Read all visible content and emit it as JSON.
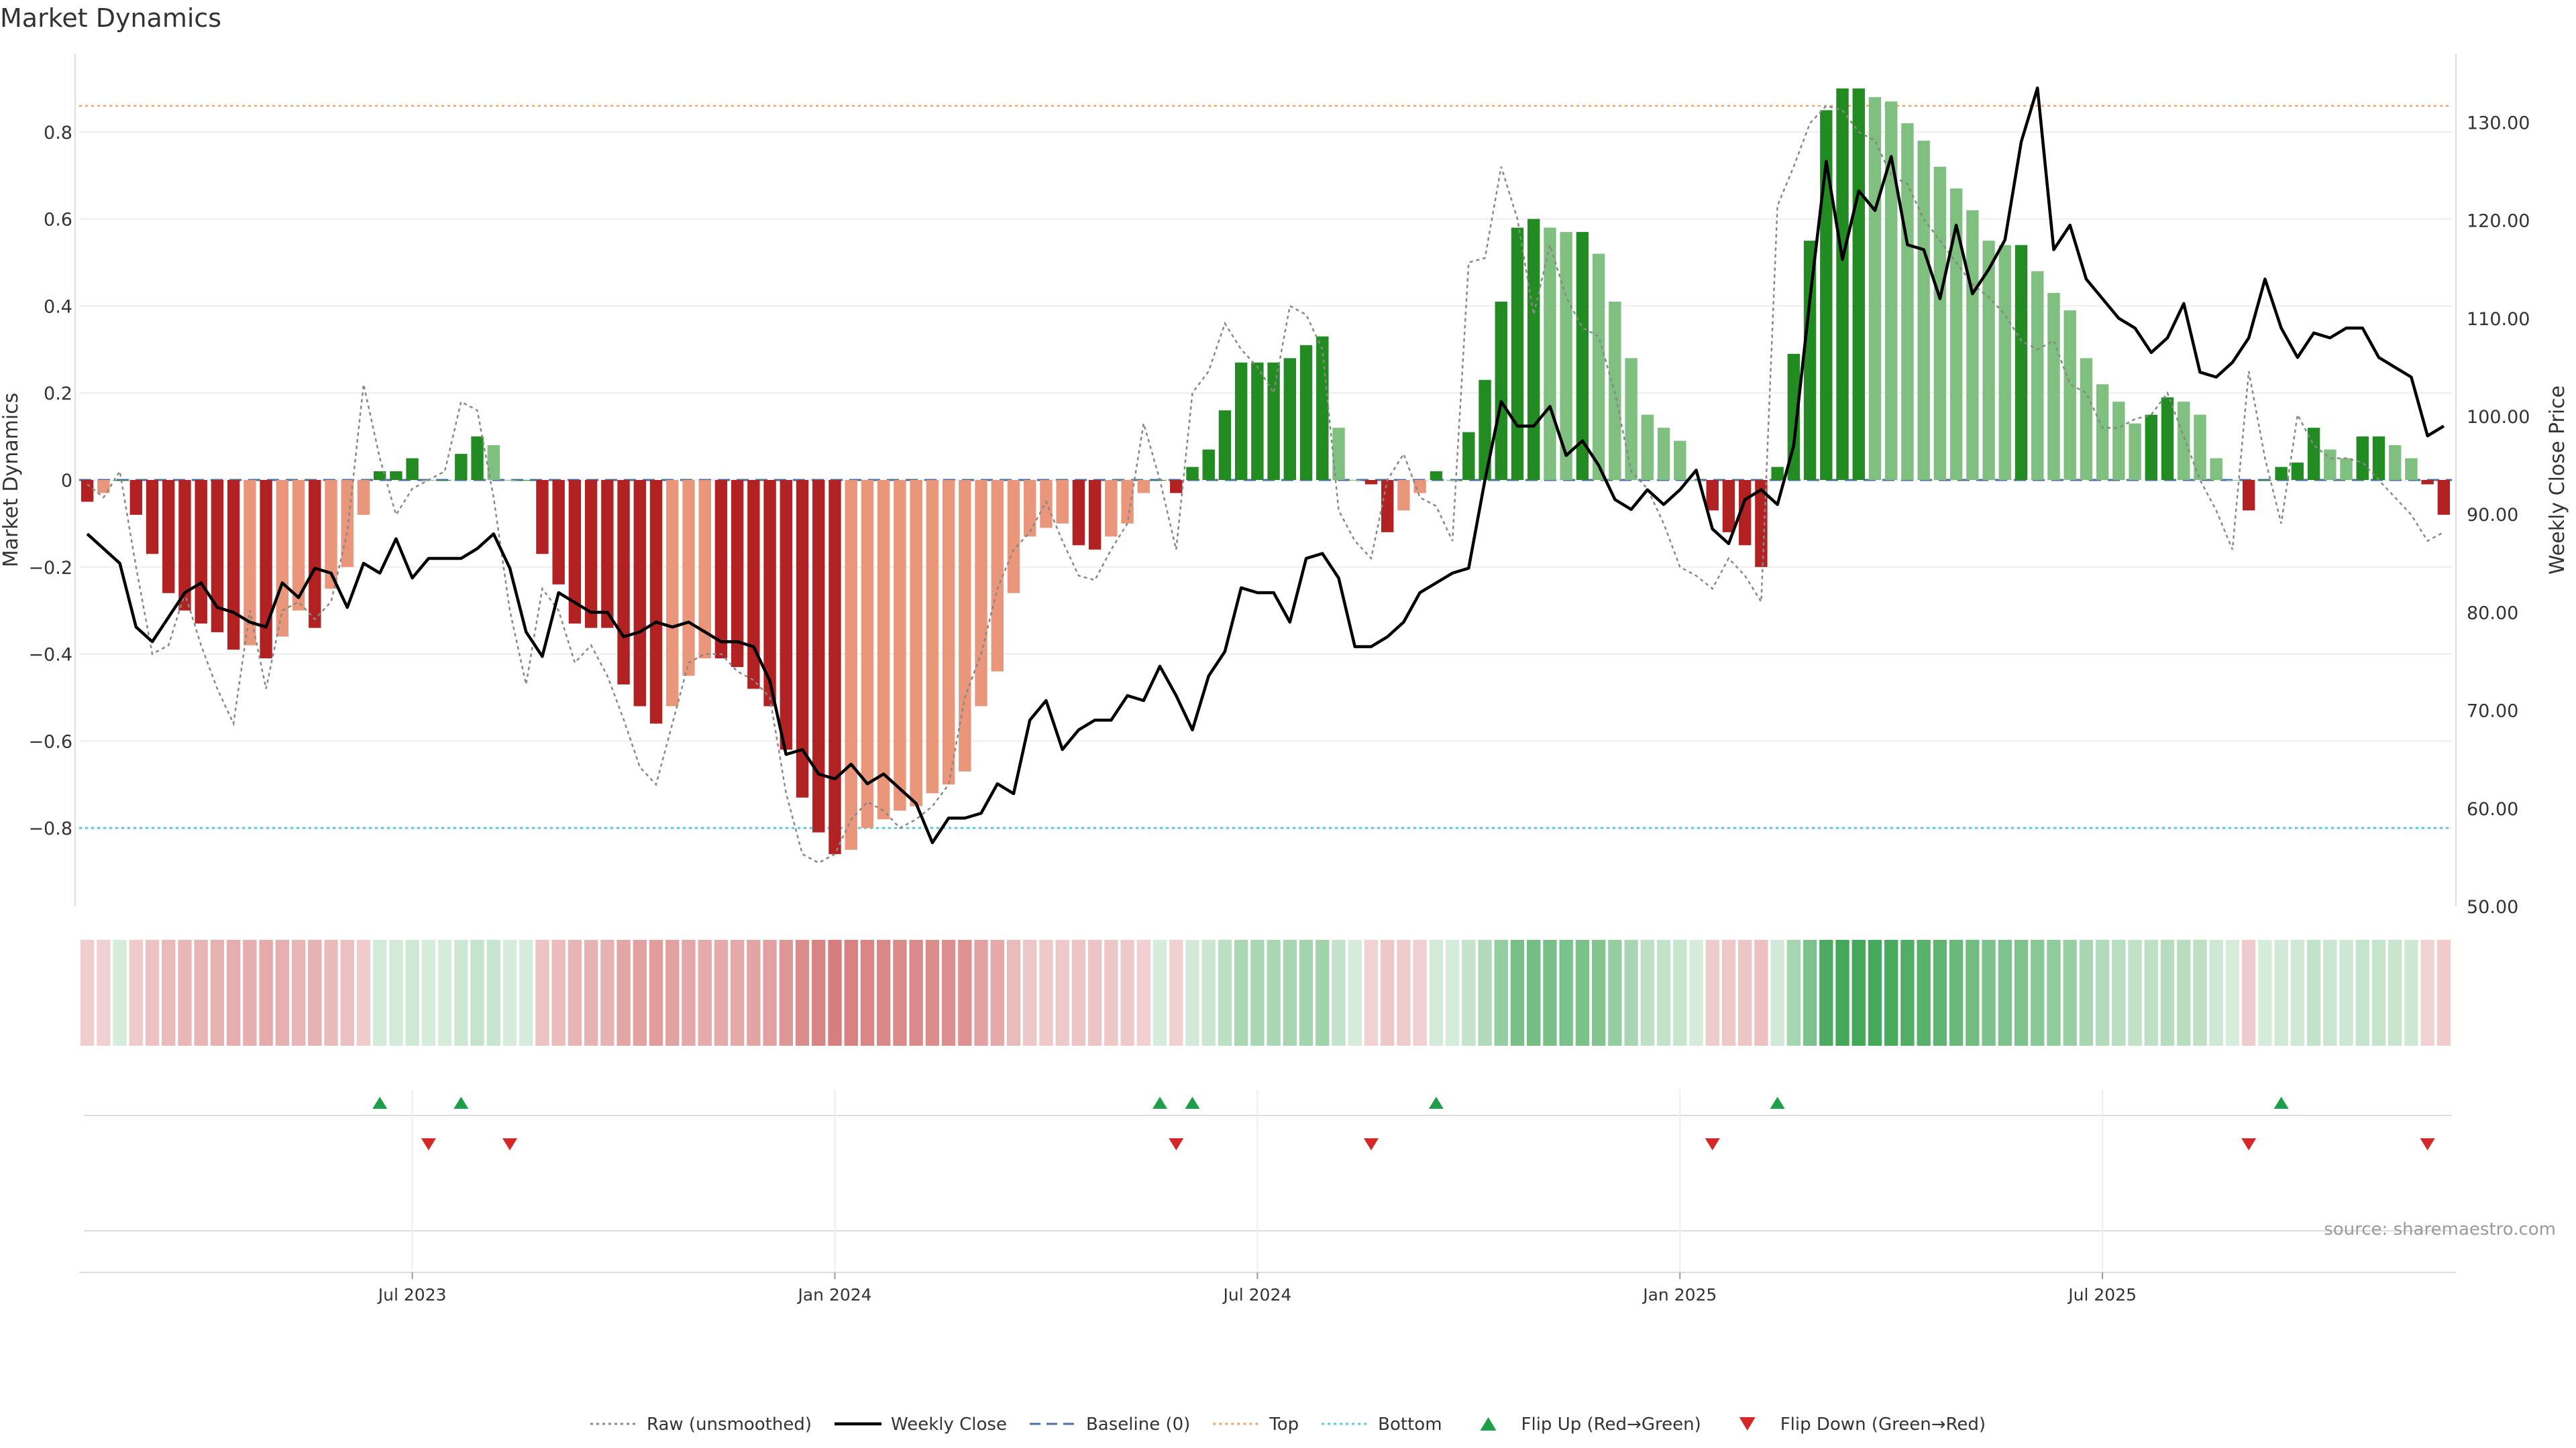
{
  "chart_data": {
    "type": "bar",
    "title": "Market Dynamics",
    "ylabel_left": "Market Dynamics",
    "ylabel_right": "Weekly Close Price",
    "left_axis": {
      "ticks": [
        "-0.8",
        "-0.6",
        "-0.4",
        "-0.2",
        "0",
        "0.2",
        "0.4",
        "0.6",
        "0.8"
      ],
      "range": [
        -0.98,
        0.98
      ]
    },
    "right_axis": {
      "ticks": [
        "50.00",
        "60.00",
        "70.00",
        "80.00",
        "90.00",
        "100.00",
        "110.00",
        "120.00",
        "130.00"
      ],
      "range": [
        50,
        137
      ]
    },
    "x_ticks": [
      {
        "label": "Jul 2023",
        "index": 20
      },
      {
        "label": "Jan 2024",
        "index": 46
      },
      {
        "label": "Jul 2024",
        "index": 72
      },
      {
        "label": "Jan 2025",
        "index": 98
      },
      {
        "label": "Jul 2025",
        "index": 124
      }
    ],
    "reference_lines": {
      "top": 0.86,
      "bottom": -0.8,
      "baseline": 0
    },
    "colors": {
      "red_strong": "#b22222",
      "red_light": "#e9967a",
      "green_strong": "#228b22",
      "green_light": "#7fbf7f",
      "top_line": "#f4a261",
      "bottom_line": "#56c8e0",
      "baseline": "#4a6fa5",
      "raw_line": "#888888",
      "close_line": "#000000",
      "flip_up": "#1e9e4a",
      "flip_down": "#d62728"
    },
    "bars": [
      -0.05,
      -0.03,
      0,
      -0.08,
      -0.17,
      -0.26,
      -0.3,
      -0.33,
      -0.35,
      -0.39,
      -0.38,
      -0.41,
      -0.36,
      -0.3,
      -0.34,
      -0.25,
      -0.2,
      -0.08,
      0.02,
      0.02,
      0.05,
      0,
      0,
      0.06,
      0.1,
      0.08,
      0,
      0,
      -0.17,
      -0.24,
      -0.33,
      -0.34,
      -0.34,
      -0.47,
      -0.52,
      -0.56,
      -0.52,
      -0.45,
      -0.41,
      -0.41,
      -0.43,
      -0.48,
      -0.52,
      -0.62,
      -0.73,
      -0.81,
      -0.86,
      -0.85,
      -0.8,
      -0.78,
      -0.76,
      -0.75,
      -0.72,
      -0.7,
      -0.67,
      -0.52,
      -0.44,
      -0.26,
      -0.13,
      -0.11,
      -0.1,
      -0.15,
      -0.16,
      -0.13,
      -0.1,
      -0.03,
      0,
      -0.03,
      0.03,
      0.07,
      0.16,
      0.27,
      0.27,
      0.27,
      0.28,
      0.31,
      0.33,
      0.12,
      0,
      -0.01,
      -0.12,
      -0.07,
      -0.03,
      0.02,
      0,
      0.11,
      0.23,
      0.41,
      0.58,
      0.6,
      0.58,
      0.57,
      0.57,
      0.52,
      0.41,
      0.28,
      0.15,
      0.12,
      0.09,
      0,
      -0.07,
      -0.12,
      -0.15,
      -0.2,
      0.03,
      0.29,
      0.55,
      0.85,
      0.9,
      0.9,
      0.88,
      0.87,
      0.82,
      0.78,
      0.72,
      0.67,
      0.62,
      0.55,
      0.54,
      0.54,
      0.48,
      0.43,
      0.39,
      0.28,
      0.22,
      0.18,
      0.13,
      0.15,
      0.19,
      0.18,
      0.15,
      0.05,
      0,
      -0.07,
      0,
      0.03,
      0.04,
      0.12,
      0.07,
      0.05,
      0.1,
      0.1,
      0.08,
      0.05,
      -0.01,
      -0.08
    ],
    "raw": [
      -0.01,
      -0.04,
      0.02,
      -0.2,
      -0.4,
      -0.38,
      -0.26,
      -0.38,
      -0.48,
      -0.56,
      -0.3,
      -0.48,
      -0.3,
      -0.28,
      -0.32,
      -0.28,
      -0.12,
      0.22,
      0.05,
      -0.08,
      -0.02,
      0,
      0.02,
      0.18,
      0.16,
      -0.04,
      -0.3,
      -0.47,
      -0.25,
      -0.3,
      -0.42,
      -0.38,
      -0.45,
      -0.55,
      -0.66,
      -0.7,
      -0.56,
      -0.42,
      -0.4,
      -0.4,
      -0.44,
      -0.46,
      -0.5,
      -0.72,
      -0.86,
      -0.88,
      -0.86,
      -0.78,
      -0.74,
      -0.76,
      -0.8,
      -0.78,
      -0.75,
      -0.7,
      -0.5,
      -0.4,
      -0.25,
      -0.16,
      -0.12,
      -0.05,
      -0.14,
      -0.22,
      -0.23,
      -0.16,
      -0.1,
      0.13,
      0.0,
      -0.16,
      0.2,
      0.25,
      0.36,
      0.3,
      0.26,
      0.2,
      0.4,
      0.38,
      0.3,
      -0.07,
      -0.14,
      -0.18,
      0.0,
      0.06,
      -0.04,
      -0.06,
      -0.14,
      0.5,
      0.51,
      0.72,
      0.6,
      0.38,
      0.54,
      0.42,
      0.35,
      0.33,
      0.2,
      0.02,
      -0.02,
      -0.1,
      -0.2,
      -0.22,
      -0.25,
      -0.18,
      -0.22,
      -0.28,
      0.63,
      0.72,
      0.82,
      0.86,
      0.85,
      0.8,
      0.78,
      0.7,
      0.68,
      0.6,
      0.55,
      0.5,
      0.45,
      0.42,
      0.38,
      0.32,
      0.3,
      0.32,
      0.22,
      0.2,
      0.12,
      0.12,
      0.14,
      0.15,
      0.2,
      0.1,
      0.0,
      -0.07,
      -0.16,
      0.25,
      0.05,
      -0.1,
      0.15,
      0.08,
      0.05,
      0.05,
      0.04,
      0.0,
      -0.04,
      -0.08,
      -0.14,
      -0.12
    ],
    "close": [
      88,
      86.5,
      85,
      78.5,
      77,
      79.5,
      82,
      83,
      80.5,
      80,
      79,
      78.5,
      83,
      81.5,
      84.5,
      84,
      80.5,
      85,
      84,
      87.5,
      83.5,
      85.5,
      85.5,
      85.5,
      86.5,
      88,
      84.5,
      78,
      75.5,
      82,
      81,
      80,
      80,
      77.5,
      78,
      79,
      78.5,
      79,
      78,
      77,
      77,
      76.5,
      73,
      65.5,
      66,
      63.5,
      63,
      64.5,
      62.5,
      63.5,
      62,
      60.5,
      56.5,
      59,
      59,
      59.5,
      62.5,
      61.5,
      69,
      71,
      66,
      68,
      69,
      69,
      71.5,
      71,
      74.5,
      71.5,
      68,
      73.5,
      76,
      82.5,
      82,
      82,
      79,
      85.5,
      86,
      83.5,
      76.5,
      76.5,
      77.5,
      79,
      82,
      83,
      84,
      84.5,
      93.5,
      101.5,
      99,
      99,
      101,
      96,
      97.5,
      95,
      91.5,
      90.5,
      92.5,
      91,
      92.5,
      94.5,
      88.5,
      87,
      91.5,
      92.5,
      91,
      97,
      112,
      126,
      116,
      123,
      121,
      126.5,
      117.5,
      117,
      112,
      119.5,
      112.5,
      115,
      118,
      128,
      133.5,
      117,
      119.5,
      114,
      112,
      110,
      109,
      106.5,
      108,
      111.5,
      104.5,
      104,
      105.5,
      108,
      114,
      109,
      106,
      108.5,
      108,
      109,
      109,
      106,
      105,
      104,
      98,
      99
    ]
  },
  "strip_colors": {
    "neg": "#c8504f",
    "pos": "#2f9e47"
  },
  "flips": {
    "up": [
      18,
      23,
      66,
      68,
      83,
      104,
      135
    ],
    "down": [
      21,
      26,
      67,
      79,
      100,
      133,
      144
    ]
  },
  "legend": [
    {
      "label": "Raw (unsmoothed)",
      "kind": "dotted",
      "color": "#888888"
    },
    {
      "label": "Weekly Close",
      "kind": "solid",
      "color": "#000000"
    },
    {
      "label": "Baseline (0)",
      "kind": "dashed",
      "color": "#4a6fa5"
    },
    {
      "label": "Top",
      "kind": "dotted",
      "color": "#f4a261"
    },
    {
      "label": "Bottom",
      "kind": "dotted",
      "color": "#56c8e0"
    },
    {
      "label": "Flip Up (Red→Green)",
      "kind": "tri-up",
      "color": "#1e9e4a"
    },
    {
      "label": "Flip Down (Green→Red)",
      "kind": "tri-down",
      "color": "#d62728"
    }
  ],
  "source": "source: sharemaestro.com"
}
